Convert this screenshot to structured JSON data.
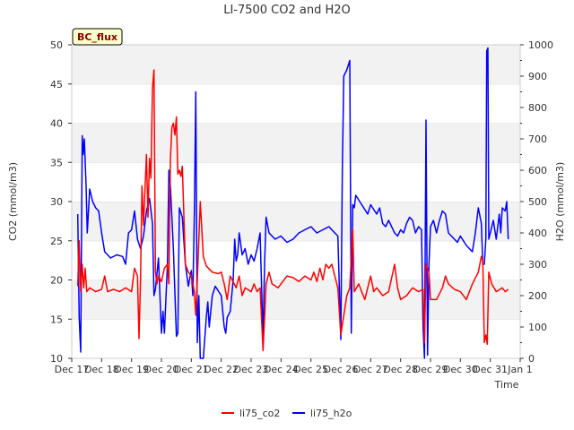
{
  "chart_data": {
    "type": "line",
    "title": "LI-7500 CO2 and H2O",
    "xlabel": "Time",
    "ylabel_left": "CO2 (mmol/m3)",
    "ylabel_right": "H2O (mmol/m3)",
    "badge": "BC_flux",
    "x_ticks": [
      "Dec 17",
      "Dec 18",
      "Dec 19",
      "Dec 20",
      "Dec 21",
      "Dec 22",
      "Dec 23",
      "Dec 24",
      "Dec 25",
      "Dec 26",
      "Dec 27",
      "Dec 28",
      "Dec 29",
      "Dec 30",
      "Dec 31",
      "Jan 1"
    ],
    "x_range": [
      0,
      15
    ],
    "ylim_left": [
      10,
      50
    ],
    "yticks_left": [
      "10",
      "15",
      "20",
      "25",
      "30",
      "35",
      "40",
      "45",
      "50"
    ],
    "ylim_right": [
      0,
      1000
    ],
    "yticks_right": [
      "0",
      "100",
      "200",
      "300",
      "400",
      "500",
      "600",
      "700",
      "800",
      "900",
      "1000"
    ],
    "grid_bands": true,
    "legend_position": "bottom-center",
    "colors": {
      "co2": "#ff0000",
      "h2o": "#0000ff",
      "badge_bg": "#ffffcc"
    },
    "series": [
      {
        "name": "li75_co2",
        "axis": "left",
        "points": [
          [
            0.2,
            19.2
          ],
          [
            0.25,
            25.0
          ],
          [
            0.3,
            18.5
          ],
          [
            0.35,
            22.0
          ],
          [
            0.4,
            19.0
          ],
          [
            0.45,
            21.5
          ],
          [
            0.5,
            18.5
          ],
          [
            0.6,
            19.0
          ],
          [
            0.8,
            18.5
          ],
          [
            1.0,
            18.8
          ],
          [
            1.1,
            20.5
          ],
          [
            1.2,
            18.5
          ],
          [
            1.4,
            18.8
          ],
          [
            1.6,
            18.5
          ],
          [
            1.8,
            19.0
          ],
          [
            2.0,
            18.5
          ],
          [
            2.1,
            21.5
          ],
          [
            2.2,
            20.5
          ],
          [
            2.25,
            12.5
          ],
          [
            2.3,
            20.0
          ],
          [
            2.35,
            32.0
          ],
          [
            2.4,
            27.0
          ],
          [
            2.5,
            36.0
          ],
          [
            2.55,
            28.0
          ],
          [
            2.6,
            35.5
          ],
          [
            2.65,
            33.0
          ],
          [
            2.7,
            44.5
          ],
          [
            2.75,
            46.8
          ],
          [
            2.8,
            21.0
          ],
          [
            2.85,
            19.5
          ],
          [
            2.9,
            20.5
          ],
          [
            3.0,
            19.8
          ],
          [
            3.1,
            21.5
          ],
          [
            3.2,
            22.0
          ],
          [
            3.25,
            19.5
          ],
          [
            3.3,
            35.5
          ],
          [
            3.35,
            39.5
          ],
          [
            3.4,
            40.0
          ],
          [
            3.45,
            38.5
          ],
          [
            3.5,
            40.8
          ],
          [
            3.55,
            33.5
          ],
          [
            3.6,
            34.0
          ],
          [
            3.65,
            33.2
          ],
          [
            3.7,
            34.5
          ],
          [
            3.8,
            22.0
          ],
          [
            3.9,
            21.0
          ],
          [
            4.0,
            20.5
          ],
          [
            4.1,
            18.5
          ],
          [
            4.15,
            15.5
          ],
          [
            4.2,
            20.0
          ],
          [
            4.3,
            30.0
          ],
          [
            4.4,
            23.0
          ],
          [
            4.5,
            21.8
          ],
          [
            4.7,
            21.0
          ],
          [
            4.9,
            20.8
          ],
          [
            5.0,
            21.0
          ],
          [
            5.1,
            19.5
          ],
          [
            5.2,
            17.5
          ],
          [
            5.3,
            20.5
          ],
          [
            5.5,
            19.0
          ],
          [
            5.6,
            20.5
          ],
          [
            5.7,
            18.0
          ],
          [
            5.8,
            19.0
          ],
          [
            6.0,
            18.5
          ],
          [
            6.1,
            19.5
          ],
          [
            6.2,
            18.5
          ],
          [
            6.3,
            19.0
          ],
          [
            6.4,
            11.0
          ],
          [
            6.5,
            19.5
          ],
          [
            6.6,
            21.0
          ],
          [
            6.7,
            19.5
          ],
          [
            6.9,
            19.0
          ],
          [
            7.0,
            19.5
          ],
          [
            7.2,
            20.5
          ],
          [
            7.4,
            20.3
          ],
          [
            7.6,
            19.8
          ],
          [
            7.8,
            20.5
          ],
          [
            8.0,
            20.0
          ],
          [
            8.1,
            21.0
          ],
          [
            8.2,
            19.8
          ],
          [
            8.3,
            21.5
          ],
          [
            8.4,
            20.0
          ],
          [
            8.5,
            22.0
          ],
          [
            8.6,
            21.5
          ],
          [
            8.7,
            22.0
          ],
          [
            8.8,
            20.5
          ],
          [
            8.9,
            19.0
          ],
          [
            9.0,
            13.0
          ],
          [
            9.2,
            18.0
          ],
          [
            9.3,
            19.0
          ],
          [
            9.4,
            26.5
          ],
          [
            9.45,
            18.5
          ],
          [
            9.6,
            19.5
          ],
          [
            9.7,
            18.5
          ],
          [
            9.8,
            17.5
          ],
          [
            10.0,
            20.5
          ],
          [
            10.1,
            18.5
          ],
          [
            10.2,
            19.0
          ],
          [
            10.4,
            18.0
          ],
          [
            10.6,
            18.5
          ],
          [
            10.8,
            22.0
          ],
          [
            10.9,
            19.0
          ],
          [
            11.0,
            17.5
          ],
          [
            11.2,
            18.0
          ],
          [
            11.4,
            19.0
          ],
          [
            11.6,
            18.5
          ],
          [
            11.75,
            18.8
          ],
          [
            11.8,
            12.0
          ],
          [
            11.85,
            22.0
          ],
          [
            11.95,
            21.0
          ],
          [
            12.0,
            17.5
          ],
          [
            12.2,
            17.5
          ],
          [
            12.4,
            19.0
          ],
          [
            12.5,
            20.5
          ],
          [
            12.6,
            19.5
          ],
          [
            12.8,
            18.8
          ],
          [
            13.0,
            18.5
          ],
          [
            13.2,
            17.5
          ],
          [
            13.4,
            19.5
          ],
          [
            13.6,
            21.0
          ],
          [
            13.7,
            23.0
          ],
          [
            13.75,
            22.5
          ],
          [
            13.8,
            12.0
          ],
          [
            13.85,
            13.0
          ],
          [
            13.9,
            11.8
          ],
          [
            13.95,
            21.0
          ],
          [
            14.05,
            19.5
          ],
          [
            14.2,
            18.5
          ],
          [
            14.4,
            19.0
          ],
          [
            14.5,
            18.5
          ],
          [
            14.6,
            18.8
          ]
        ]
      },
      {
        "name": "li75_h2o",
        "axis": "right",
        "points": [
          [
            0.2,
            460
          ],
          [
            0.25,
            130
          ],
          [
            0.3,
            20
          ],
          [
            0.35,
            710
          ],
          [
            0.38,
            650
          ],
          [
            0.42,
            700
          ],
          [
            0.48,
            550
          ],
          [
            0.52,
            400
          ],
          [
            0.6,
            540
          ],
          [
            0.7,
            500
          ],
          [
            0.8,
            480
          ],
          [
            0.9,
            470
          ],
          [
            1.0,
            400
          ],
          [
            1.1,
            340
          ],
          [
            1.3,
            320
          ],
          [
            1.5,
            330
          ],
          [
            1.7,
            325
          ],
          [
            1.8,
            300
          ],
          [
            1.9,
            400
          ],
          [
            2.0,
            410
          ],
          [
            2.1,
            470
          ],
          [
            2.2,
            380
          ],
          [
            2.3,
            350
          ],
          [
            2.4,
            390
          ],
          [
            2.5,
            470
          ],
          [
            2.6,
            510
          ],
          [
            2.7,
            430
          ],
          [
            2.75,
            200
          ],
          [
            2.8,
            220
          ],
          [
            2.9,
            320
          ],
          [
            3.0,
            80
          ],
          [
            3.05,
            150
          ],
          [
            3.1,
            80
          ],
          [
            3.2,
            300
          ],
          [
            3.25,
            600
          ],
          [
            3.3,
            550
          ],
          [
            3.4,
            350
          ],
          [
            3.5,
            70
          ],
          [
            3.55,
            80
          ],
          [
            3.6,
            480
          ],
          [
            3.7,
            450
          ],
          [
            3.8,
            300
          ],
          [
            3.9,
            230
          ],
          [
            4.0,
            280
          ],
          [
            4.05,
            200
          ],
          [
            4.1,
            460
          ],
          [
            4.15,
            850
          ],
          [
            4.2,
            50
          ],
          [
            4.25,
            200
          ],
          [
            4.3,
            0
          ],
          [
            4.4,
            0
          ],
          [
            4.5,
            130
          ],
          [
            4.55,
            180
          ],
          [
            4.6,
            100
          ],
          [
            4.7,
            200
          ],
          [
            4.8,
            230
          ],
          [
            5.0,
            200
          ],
          [
            5.1,
            100
          ],
          [
            5.15,
            80
          ],
          [
            5.2,
            130
          ],
          [
            5.3,
            150
          ],
          [
            5.4,
            250
          ],
          [
            5.45,
            380
          ],
          [
            5.5,
            310
          ],
          [
            5.55,
            330
          ],
          [
            5.6,
            400
          ],
          [
            5.7,
            330
          ],
          [
            5.8,
            350
          ],
          [
            5.9,
            300
          ],
          [
            6.0,
            330
          ],
          [
            6.1,
            310
          ],
          [
            6.2,
            350
          ],
          [
            6.3,
            400
          ],
          [
            6.4,
            60
          ],
          [
            6.45,
            300
          ],
          [
            6.5,
            450
          ],
          [
            6.6,
            400
          ],
          [
            6.8,
            380
          ],
          [
            7.0,
            390
          ],
          [
            7.2,
            370
          ],
          [
            7.4,
            380
          ],
          [
            7.6,
            400
          ],
          [
            7.8,
            410
          ],
          [
            8.0,
            420
          ],
          [
            8.2,
            400
          ],
          [
            8.4,
            410
          ],
          [
            8.6,
            420
          ],
          [
            8.8,
            400
          ],
          [
            8.9,
            390
          ],
          [
            9.0,
            60
          ],
          [
            9.05,
            600
          ],
          [
            9.1,
            900
          ],
          [
            9.2,
            920
          ],
          [
            9.3,
            950
          ],
          [
            9.35,
            80
          ],
          [
            9.4,
            490
          ],
          [
            9.45,
            480
          ],
          [
            9.5,
            520
          ],
          [
            9.7,
            490
          ],
          [
            9.9,
            460
          ],
          [
            10.0,
            490
          ],
          [
            10.2,
            460
          ],
          [
            10.3,
            480
          ],
          [
            10.4,
            430
          ],
          [
            10.5,
            420
          ],
          [
            10.6,
            440
          ],
          [
            10.8,
            400
          ],
          [
            10.9,
            390
          ],
          [
            11.0,
            410
          ],
          [
            11.1,
            400
          ],
          [
            11.2,
            430
          ],
          [
            11.3,
            450
          ],
          [
            11.4,
            440
          ],
          [
            11.5,
            400
          ],
          [
            11.6,
            420
          ],
          [
            11.7,
            410
          ],
          [
            11.75,
            100
          ],
          [
            11.8,
            0
          ],
          [
            11.85,
            760
          ],
          [
            11.9,
            10
          ],
          [
            11.95,
            300
          ],
          [
            12.0,
            420
          ],
          [
            12.1,
            440
          ],
          [
            12.2,
            400
          ],
          [
            12.3,
            440
          ],
          [
            12.4,
            470
          ],
          [
            12.5,
            460
          ],
          [
            12.6,
            400
          ],
          [
            12.8,
            380
          ],
          [
            12.9,
            370
          ],
          [
            13.0,
            390
          ],
          [
            13.2,
            360
          ],
          [
            13.4,
            340
          ],
          [
            13.5,
            400
          ],
          [
            13.6,
            480
          ],
          [
            13.7,
            430
          ],
          [
            13.75,
            300
          ],
          [
            13.8,
            300
          ],
          [
            13.85,
            380
          ],
          [
            13.88,
            980
          ],
          [
            13.92,
            990
          ],
          [
            13.95,
            380
          ],
          [
            14.0,
            400
          ],
          [
            14.1,
            440
          ],
          [
            14.2,
            380
          ],
          [
            14.3,
            460
          ],
          [
            14.35,
            400
          ],
          [
            14.4,
            480
          ],
          [
            14.5,
            470
          ],
          [
            14.55,
            500
          ],
          [
            14.6,
            380
          ]
        ]
      }
    ]
  }
}
